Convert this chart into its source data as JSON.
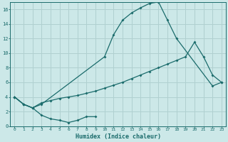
{
  "xlabel": "Humidex (Indice chaleur)",
  "bg_color": "#cce8e8",
  "grid_color": "#b0d0d0",
  "line_color": "#1a6b6b",
  "xlim": [
    -0.5,
    23.5
  ],
  "ylim": [
    0,
    17
  ],
  "xticks": [
    0,
    1,
    2,
    3,
    4,
    5,
    6,
    7,
    8,
    9,
    10,
    11,
    12,
    13,
    14,
    15,
    16,
    17,
    18,
    19,
    20,
    21,
    22,
    23
  ],
  "yticks": [
    0,
    2,
    4,
    6,
    8,
    10,
    12,
    14,
    16
  ],
  "line1_x": [
    0,
    1,
    2,
    3,
    10,
    11,
    12,
    13,
    14,
    15,
    16,
    17,
    18,
    22,
    23
  ],
  "line1_y": [
    4,
    3,
    2.5,
    3.0,
    9.5,
    12.5,
    14.5,
    15.5,
    16.2,
    16.8,
    17.0,
    14.5,
    12.0,
    5.5,
    6.0
  ],
  "line2_x": [
    0,
    1,
    2,
    3,
    4,
    5,
    6,
    7,
    8,
    9,
    10,
    11,
    12,
    13,
    14,
    15,
    16,
    17,
    18,
    19,
    20,
    21,
    22,
    23
  ],
  "line2_y": [
    4.0,
    3.0,
    2.5,
    3.2,
    3.5,
    3.8,
    4.0,
    4.2,
    4.5,
    4.8,
    5.2,
    5.6,
    6.0,
    6.5,
    7.0,
    7.5,
    8.0,
    8.5,
    9.0,
    9.5,
    11.5,
    9.5,
    7.0,
    6.0
  ],
  "line3_x": [
    0,
    1,
    2,
    3,
    4,
    5,
    6,
    7,
    8,
    9
  ],
  "line3_y": [
    4.0,
    3.0,
    2.5,
    1.5,
    1.0,
    0.8,
    0.5,
    0.8,
    1.3,
    1.3
  ]
}
